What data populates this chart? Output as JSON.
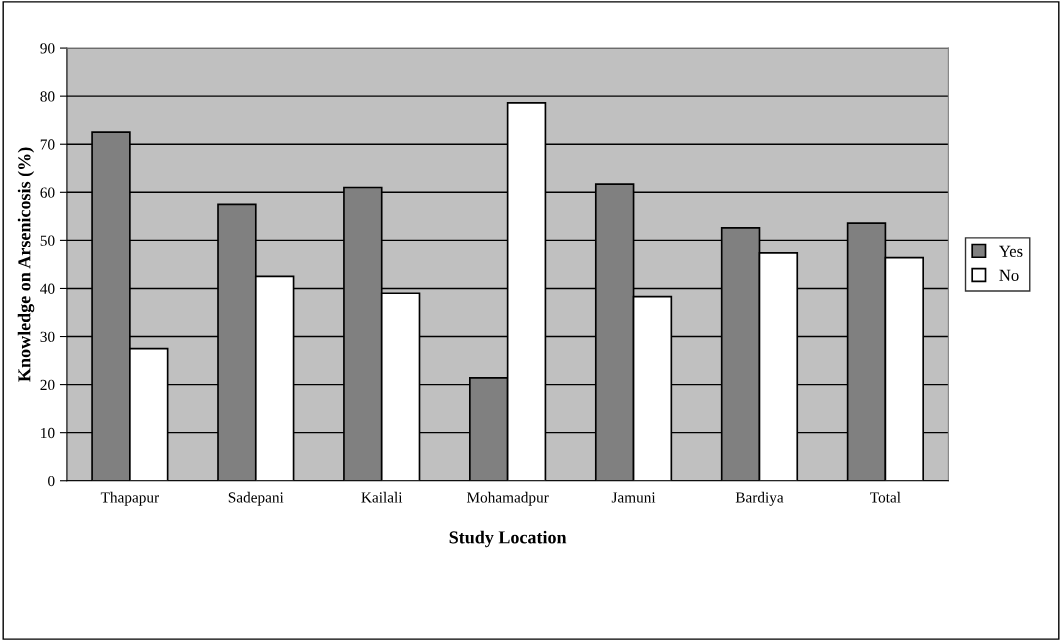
{
  "chart_data": {
    "type": "bar",
    "xlabel": "Study Location",
    "ylabel": "Knowledge on Arsenicosis (%)",
    "categories": [
      "Thapapur",
      "Sadepani",
      "Kailali",
      "Mohamadpur",
      "Jamuni",
      "Bardiya",
      "Total"
    ],
    "series": [
      {
        "name": "Yes",
        "color": "#808080",
        "values": [
          72.5,
          57.5,
          61,
          21.4,
          61.7,
          52.6,
          53.6
        ]
      },
      {
        "name": "No",
        "color": "#ffffff",
        "values": [
          27.5,
          42.5,
          39,
          78.6,
          38.3,
          47.4,
          46.4
        ]
      }
    ],
    "ylim": [
      0,
      90
    ],
    "yticks": [
      0,
      10,
      20,
      30,
      40,
      50,
      60,
      70,
      80,
      90
    ],
    "grid": "y",
    "legend": "right"
  }
}
